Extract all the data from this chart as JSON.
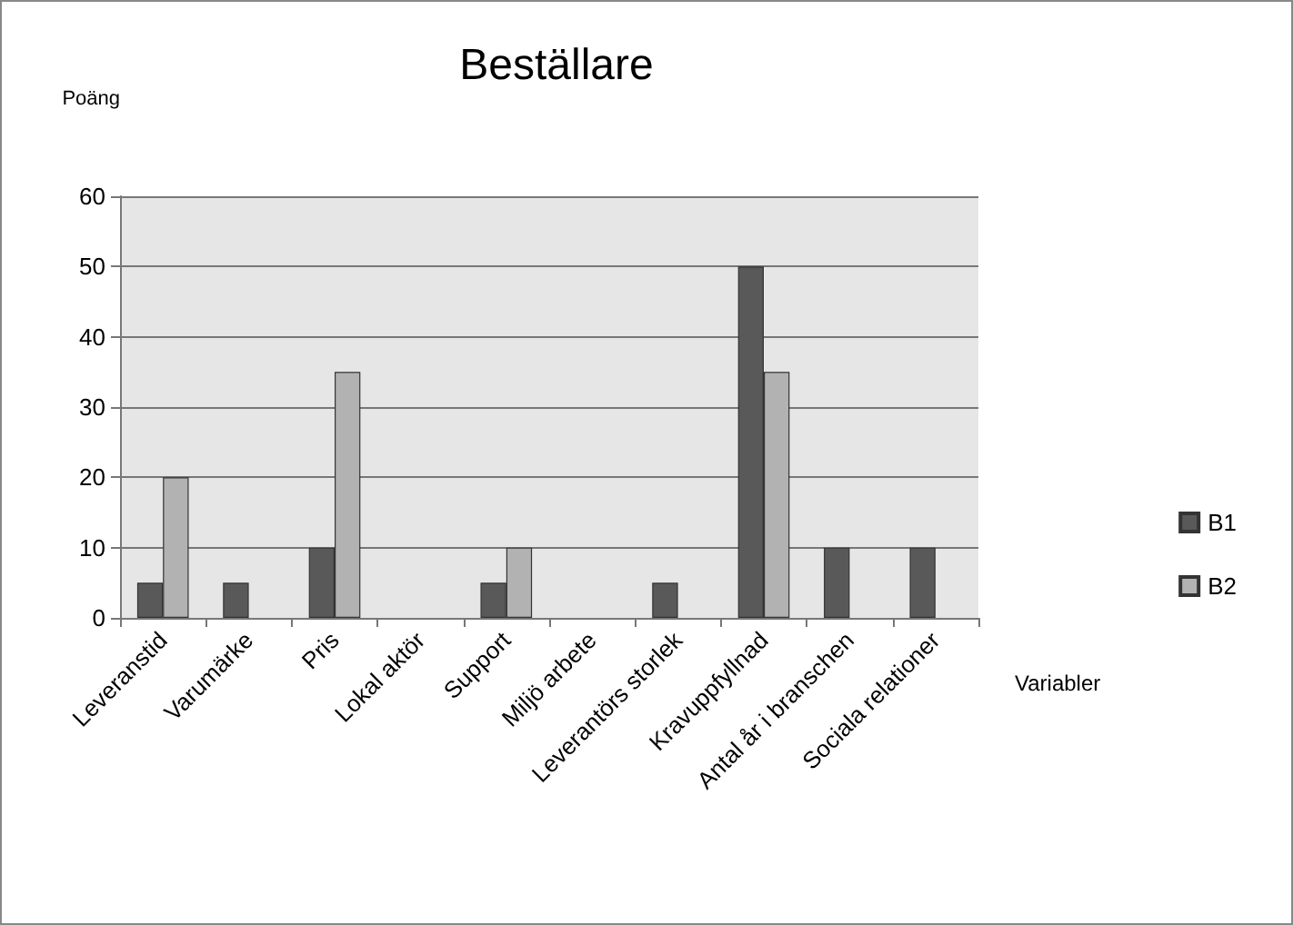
{
  "chart_data": {
    "type": "bar",
    "title": "Beställare",
    "xlabel": "Variabler",
    "ylabel": "Poäng",
    "categories": [
      "Leveranstid",
      "Varumärke",
      "Pris",
      "Lokal aktör",
      "Support",
      "Miljö arbete",
      "Leverantörs storlek",
      "Kravuppfyllnad",
      "Antal år i branschen",
      "Sociala relationer"
    ],
    "series": [
      {
        "name": "B1",
        "color": "#595959",
        "values": [
          5,
          5,
          10,
          0,
          5,
          0,
          5,
          50,
          10,
          10
        ]
      },
      {
        "name": "B2",
        "color": "#b2b2b2",
        "values": [
          20,
          0,
          35,
          0,
          10,
          0,
          0,
          35,
          0,
          0
        ]
      }
    ],
    "ylim": [
      0,
      60
    ],
    "yticks": [
      0,
      10,
      20,
      30,
      40,
      50,
      60
    ],
    "grid": "y",
    "legend": "right"
  }
}
